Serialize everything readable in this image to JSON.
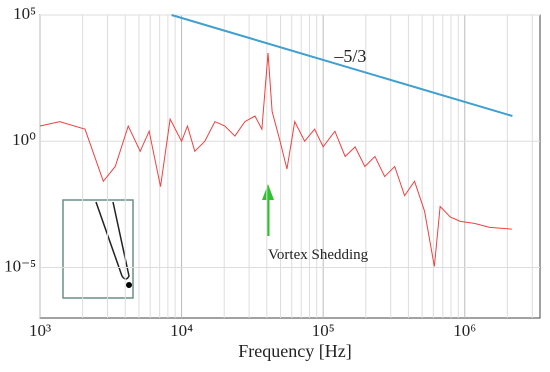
{
  "chart_data": {
    "type": "line",
    "x_label": "Frequency [Hz]",
    "xlog": true,
    "ylog": true,
    "xlim": [
      1000,
      3400000
    ],
    "ylim": [
      1e-07,
      100000
    ],
    "xticks": [
      {
        "value": 1000,
        "label": "10³"
      },
      {
        "value": 10000,
        "label": "10⁴"
      },
      {
        "value": 100000,
        "label": "10⁵"
      },
      {
        "value": 1000000,
        "label": "10⁶"
      }
    ],
    "yticks": [
      {
        "value": 1e-05,
        "label": "10⁻⁵"
      },
      {
        "value": 1,
        "label": "10⁰"
      },
      {
        "value": 100000,
        "label": "10⁵"
      }
    ],
    "xminorticks": [
      2000,
      3000,
      4000,
      5000,
      6000,
      7000,
      8000,
      9000,
      20000,
      30000,
      40000,
      50000,
      60000,
      70000,
      80000,
      90000,
      200000,
      300000,
      400000,
      500000,
      600000,
      700000,
      800000,
      900000,
      2000000,
      3000000
    ],
    "grid": true,
    "series": [
      {
        "color": "#f04040",
        "x": [
          1000,
          1380,
          2080,
          2800,
          3400,
          4200,
          5100,
          5900,
          7100,
          8300,
          10000,
          11000,
          12400,
          14600,
          17200,
          20200,
          23800,
          28000,
          33000,
          36900,
          40800,
          43600,
          49600,
          55500,
          63000,
          74000,
          87000,
          100000,
          121000,
          143000,
          168000,
          197000,
          232000,
          272000,
          320000,
          376000,
          442000,
          520000,
          610000,
          670000,
          790000,
          930000,
          1170000,
          1500000,
          2150000
        ],
        "values": [
          4,
          6,
          3,
          0.026,
          0.1,
          4,
          0.4,
          2.5,
          0.016,
          7.5,
          1,
          4,
          0.4,
          1,
          6,
          4,
          1.6,
          6,
          10,
          3,
          3100,
          15,
          1,
          0.08,
          6,
          1,
          3,
          0.6,
          2.5,
          0.25,
          0.6,
          0.1,
          0.25,
          0.04,
          0.1,
          0.007,
          0.026,
          0.0017,
          1.1e-05,
          0.0026,
          0.001,
          0.00067,
          0.00056,
          0.00039,
          0.00033
        ]
      },
      {
        "color": "#3fa0cf",
        "x": [
          8500,
          2170000
        ],
        "values": [
          100000,
          10
        ]
      }
    ],
    "annotations": [
      {
        "text": "–5/3",
        "x": 120000,
        "y": 2000
      },
      {
        "text": "Vortex Shedding",
        "x": 40800,
        "y": 3e-05
      }
    ]
  }
}
